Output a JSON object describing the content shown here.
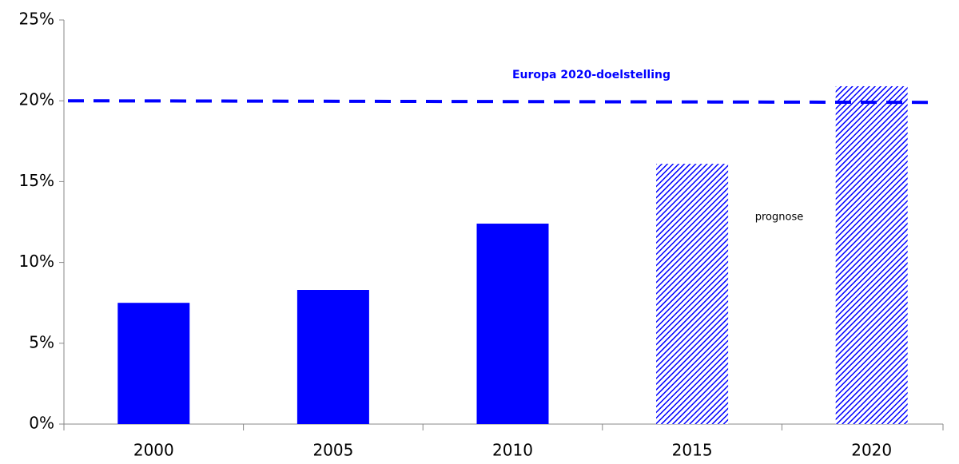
{
  "chart_data": {
    "type": "bar",
    "categories": [
      "2000",
      "2005",
      "2010",
      "2015",
      "2020"
    ],
    "values": [
      7.5,
      8.3,
      12.4,
      16.1,
      20.9
    ],
    "color": "#0000ff",
    "hatch": [
      false,
      false,
      false,
      true,
      true
    ],
    "ylim": [
      0,
      25
    ],
    "yticks": [
      {
        "value": 0,
        "label": "0%"
      },
      {
        "value": 5,
        "label": "5%"
      },
      {
        "value": 10,
        "label": "10%"
      },
      {
        "value": 15,
        "label": "15%"
      },
      {
        "value": 20,
        "label": "20%"
      },
      {
        "value": 25,
        "label": "25%"
      }
    ],
    "reference_line": {
      "value": 20,
      "label": "Europa 2020-doelstelling",
      "color": "#0000ff"
    },
    "annotation": "prognose"
  }
}
